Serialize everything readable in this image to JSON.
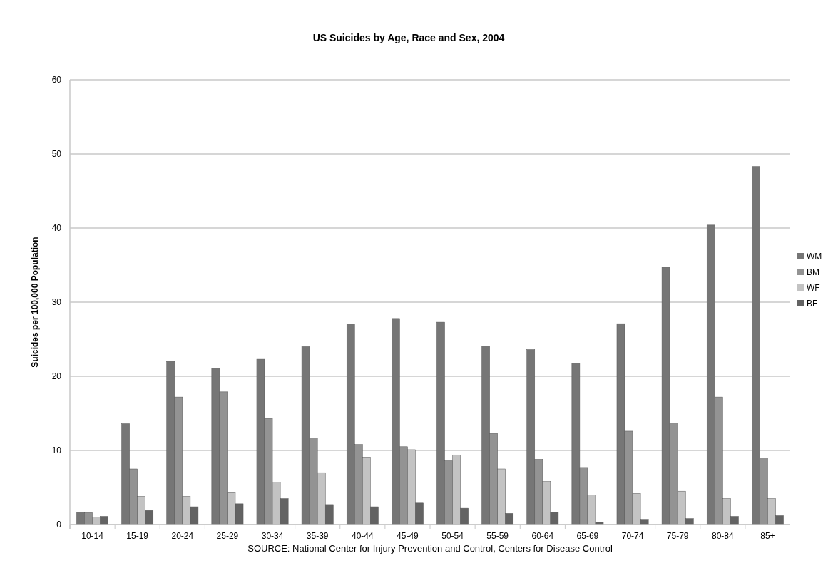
{
  "chart_data": {
    "type": "bar",
    "title": "US Suicides by Age, Race and Sex, 2004",
    "ylabel": "Suicides per 100,000 Population",
    "annotations": [
      "SOURCE: National Center for Injury Prevention and Control, Centers for Disease Control"
    ],
    "categories": [
      "10-14",
      "15-19",
      "20-24",
      "25-29",
      "30-34",
      "35-39",
      "40-44",
      "45-49",
      "50-54",
      "55-59",
      "60-64",
      "65-69",
      "70-74",
      "75-79",
      "80-84",
      "85+"
    ],
    "series": [
      {
        "name": "WM",
        "color": "#767676",
        "values": [
          1.7,
          13.6,
          22.0,
          21.1,
          22.3,
          24.0,
          27.0,
          27.8,
          27.3,
          24.1,
          23.6,
          21.8,
          27.1,
          34.7,
          40.4,
          48.3
        ]
      },
      {
        "name": "BM",
        "color": "#939393",
        "values": [
          1.6,
          7.5,
          17.2,
          17.9,
          14.3,
          11.7,
          10.8,
          10.5,
          8.6,
          12.3,
          8.8,
          7.7,
          12.6,
          13.6,
          17.2,
          9.0
        ]
      },
      {
        "name": "WF",
        "color": "#c3c3c3",
        "values": [
          1.0,
          3.8,
          3.8,
          4.3,
          5.7,
          7.0,
          9.1,
          10.1,
          9.4,
          7.5,
          5.8,
          4.0,
          4.2,
          4.5,
          3.5,
          3.5
        ]
      },
      {
        "name": "BF",
        "color": "#636363",
        "values": [
          1.1,
          1.9,
          2.4,
          2.8,
          3.5,
          2.7,
          2.4,
          2.9,
          2.2,
          1.5,
          1.7,
          0.3,
          0.7,
          0.8,
          1.1,
          1.2
        ]
      }
    ],
    "ylim": [
      0,
      60
    ],
    "yticks": [
      0,
      10,
      20,
      30,
      40,
      50,
      60
    ],
    "grid": "y",
    "legend": "right"
  }
}
